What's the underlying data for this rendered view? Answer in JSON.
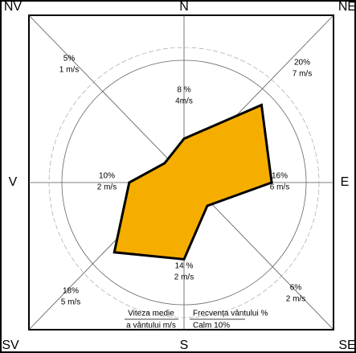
{
  "chart_data": {
    "type": "radar",
    "categories": [
      "N",
      "NE",
      "E",
      "SE",
      "S",
      "SV",
      "V",
      "NV"
    ],
    "values": [
      8,
      20,
      16,
      6,
      14,
      18,
      10,
      5
    ],
    "value_labels": [
      "8 %",
      "20%",
      "16%",
      "6%",
      "14 %",
      "18%",
      "10%",
      "5%"
    ],
    "speeds": [
      4,
      7,
      6,
      2,
      2,
      5,
      2,
      1
    ],
    "speed_labels": [
      "4m/s",
      "7 m/s",
      "6 m/s",
      "2 m/s",
      "2 m/s",
      "5 m/s",
      "2 m/s",
      "1 m/s"
    ],
    "color": "#f5ae00",
    "ylim": [
      0,
      22
    ],
    "legend_speed": [
      "Viteza medie",
      "a vântului m/s"
    ],
    "legend_frequency": "Frecvența vântului %",
    "calm": 10,
    "calm_label": "Calm 10%"
  }
}
